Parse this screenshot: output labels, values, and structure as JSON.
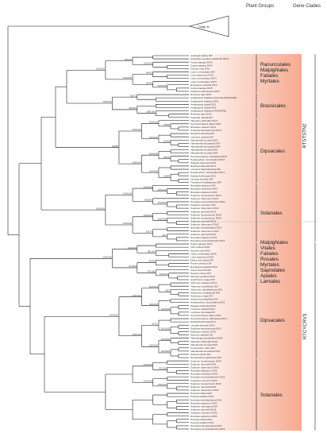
{
  "headers": {
    "plant_groups": "Plant Groups",
    "gene_clades": "Gene Clades"
  },
  "outgroup_label": "Outgr. sl",
  "clades": [
    {
      "id": "rc1",
      "label": "RTSTSTN2"
    },
    {
      "id": "rc2",
      "label": "RTCYCRV3"
    }
  ],
  "groups_top": [
    {
      "id": "g1",
      "labels": [
        "Ranunculales",
        "Malpighiales",
        "Fabales",
        "Myrtales"
      ]
    },
    {
      "id": "g2",
      "labels": [
        "Brassicales"
      ]
    },
    {
      "id": "g3",
      "labels": [
        "Dipsacales"
      ]
    },
    {
      "id": "g4",
      "labels": [
        "Solanales"
      ]
    }
  ],
  "groups_bottom": [
    {
      "id": "g5",
      "labels": [
        "Malpighiales",
        "Vitales",
        "Fabales",
        "Rosales",
        "Myrtales",
        "Sapindales",
        "Apiales",
        "Lamiales"
      ]
    },
    {
      "id": "g6",
      "labels": [
        "Dipsacales"
      ]
    },
    {
      "id": "g7",
      "labels": [
        "Solanales"
      ]
    }
  ],
  "tips": [
    "Aquilegia alpina DIV",
    "Aquilegia coerulea Goldsmith DIV3",
    "Carica papaya DIV3",
    "Carica papaya DIV4",
    "Glycine max DIV1",
    "Lotus corniculatus DIV",
    "Lotus japonicus DIV1",
    "Lotus corniculatus DIV4",
    "Lotus corniculatus DIV3",
    "Eucalyptus grandis DIV1",
    "Carica papaya DIV5",
    "Clarkia tembloriensis DIV3",
    "Brassica rapa DIV1",
    "Arabidopsis thaliana columbia AT5G11260",
    "Arabidopsis thaliana DIV1",
    "Arabidopsis lyrata DIV1",
    "Arabidopsis lyrata DIV2",
    "Arabidopsis thaliana AT5G05790",
    "Brassica rapa DIV2",
    "Capsella rubella DIV",
    "Valeriana officinalis DIV1",
    "Symphoricarpos albus DIV1",
    "Dipsacus sativum DIV1",
    "Scabiosa atropurpurea DIV3",
    "Dipelta floribunda DIV",
    "Lonicera maackii DIV",
    "Valerianella locusta DIV2",
    "Valerianella eriocarpa DIV3",
    "Valerianella eriocarpa DIV4",
    "Valerianella locusta DIV3",
    "Valerianella locusta DIV4",
    "Symphoricarpos orbiculatus DIV2",
    "Heptacodium miconioides DIV2",
    "Weigela hortensis DIV2",
    "Dipelta floribunda DIV2",
    "Lonicera fragrantissima DIV",
    "Heptacodium miconioides DIV1",
    "Dipelta floribunda DIV3",
    "Linnaea borealis DIV",
    "Triosteum himalayanum DIV",
    "Nicotiana tabacum DIV",
    "Nicotiana sylvestris DIV1",
    "Nicotiana tabacum DIV3",
    "Solanum lycopersicum DIV1",
    "Solanum tuberosum DIV1",
    "Nicotiana tomentosiformis DIV2",
    "Capsicum annuum DIV",
    "Solanum tuberosum DIV4",
    "Solanum pennellii DIV1",
    "Solanum lycopersicum DIV4",
    "Solanum lycopersicum DIV5",
    "Solanum pennellii DIV3",
    "Solanum tuberosum DIV2",
    "Nicotiana benthamiana DIV1",
    "Solanum tuberosum DIV3",
    "Solanum pennellii DIV2",
    "Nicotiana tabacum DIV1",
    "Nicotiana tomentosiformis DIV1",
    "Carica papaya DIV1",
    "Vitis vinifera DIV2",
    "Glycine max DIV3",
    "Lotus corniculatus DIV6",
    "Lotus japonicus DIV2",
    "Malus domestica DIV",
    "Prunus persica DIV",
    "Eucalyptus grandis DIV2",
    "Citrus sinensis DIV",
    "Daucus carota DIV",
    "Mimulus guttatus DIV1",
    "Antirrhinum majus DIV",
    "Viburnum plicatum DIV1",
    "Viburnum prunifolium DIV",
    "Viburnum odoratissimum DIV",
    "Sambucus canadensis DIV",
    "Sambucus nigra DIV",
    "Adoxa moschatellina DIV",
    "Heptacodium miconioides DIV3",
    "Weigela hortensis DIV1",
    "Lonicera maackii DIV2",
    "Lonicera reticulata DIV",
    "Symphoricarpos albus DIV2",
    "Symphoricarpos orbiculatus DIV1",
    "Dipelta floribunda DIV4",
    "Linnaea borealis DIV2",
    "Scabiosa atropurpurea DIV1",
    "Dipsacus sativum DIV2",
    "Morina longifolia DIV",
    "Triplostegia glandulifera DIV2",
    "Valeriana officinalis DIV2",
    "Valerianella locusta DIV1",
    "Centranthus ruber DIV",
    "Valerianella eriocarpa DIV1",
    "Patrinia villosa DIV",
    "Nardostachys jatamansi DIV",
    "Solanum lycopersicum DIV2",
    "Solanum pennellii DIV4",
    "Solanum tuberosum DIV5",
    "Nicotiana tabacum DIV4",
    "Nicotiana sylvestris DIV2",
    "Nicotiana tomentosiformis DIV3",
    "Capsicum annuum DIV2",
    "Solanum lycopersicum DIV3",
    "Solanum pennellii DIV5",
    "Solanum tuberosum DIV6",
    "Petunia inflata DIV1",
    "Petunia axillaris DIV1",
    "Nicotiana benthamiana DIV2",
    "Nicotiana tabacum DIV2",
    "Solanum melongena DIV",
    "Solanum pennellii DIV6",
    "Capsicum annuum DIV3",
    "Nicotiana tabacum DIV5",
    "Petunia inflata DIV2",
    "Petunia axillaris DIV2",
    "Nicotiana benthamiana DIV3",
    "Nicotiana tomentosiformis DIV4"
  ],
  "bootstrap": [
    "100/100",
    "99/100",
    "94/92",
    "100/100",
    "91/96",
    "100/100",
    "100/100",
    "85/71",
    "100/100",
    "98/100",
    "100/100",
    "96/95",
    "100/100",
    "61/55",
    "100/100",
    "100/100",
    "85/70",
    "100/100",
    "55/69",
    "100/100",
    "100/100",
    "99/99",
    "100/100",
    "100/100",
    "100/100",
    "98/100",
    "100/100",
    "100/100",
    "100/100",
    "49/-",
    "82/70",
    "100/100",
    "100/100",
    "98/100",
    "100/100",
    "99/92",
    "100/100",
    "97/100",
    "91/100",
    "100/100",
    "89/-",
    "100/100",
    "100/100",
    "100/100",
    "100/100",
    "100/100",
    "61/51",
    "100/100",
    "100/100",
    "100/100",
    "100/100",
    "100/100",
    "97/100",
    "100/100",
    "100/100",
    "100/100"
  ],
  "colors": {
    "band_start": "#ffffff",
    "band_end": "#f6a083",
    "separator": "#bbbbbb",
    "branch": "#111111"
  }
}
